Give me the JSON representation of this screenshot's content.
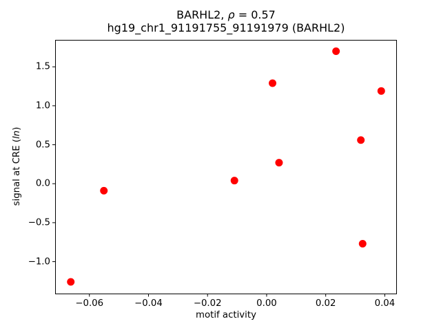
{
  "chart_data": {
    "type": "scatter",
    "title": "BARHL2, ρ = 0.57",
    "subtitle": "hg19_chr1_91191755_91191979 (BARHL2)",
    "title_parts": {
      "prefix": "BARHL2, ",
      "rho": "ρ",
      "suffix": " = 0.57"
    },
    "rho_value": 0.57,
    "xlabel": "motif activity",
    "ylabel": "signal at CRE (ln)",
    "ylabel_parts": {
      "prefix": "signal at CRE (",
      "italic": "ln",
      "suffix": ")"
    },
    "marker_color": "#ff0000",
    "marker_radius_px": 5.5,
    "grid": false,
    "legend": null,
    "xlim": [
      -0.0716,
      0.0441
    ],
    "ylim": [
      -1.414,
      1.85
    ],
    "x_ticks": [
      {
        "value": -0.06,
        "label": "−0.06"
      },
      {
        "value": -0.04,
        "label": "−0.04"
      },
      {
        "value": -0.02,
        "label": "−0.02"
      },
      {
        "value": 0.0,
        "label": "0.00"
      },
      {
        "value": 0.02,
        "label": "0.02"
      },
      {
        "value": 0.04,
        "label": "0.04"
      }
    ],
    "y_ticks": [
      {
        "value": -1.0,
        "label": "−1.0"
      },
      {
        "value": -0.5,
        "label": "−0.5"
      },
      {
        "value": 0.0,
        "label": "0.0"
      },
      {
        "value": 0.5,
        "label": "0.5"
      },
      {
        "value": 1.0,
        "label": "1.0"
      },
      {
        "value": 1.5,
        "label": "1.5"
      }
    ],
    "points": [
      {
        "x": -0.0663,
        "y": -1.26
      },
      {
        "x": -0.0551,
        "y": -0.09
      },
      {
        "x": -0.0109,
        "y": 0.04
      },
      {
        "x": 0.002,
        "y": 1.29
      },
      {
        "x": 0.0042,
        "y": 0.27
      },
      {
        "x": 0.0235,
        "y": 1.7
      },
      {
        "x": 0.0319,
        "y": 0.56
      },
      {
        "x": 0.0325,
        "y": -0.77
      },
      {
        "x": 0.0388,
        "y": 1.19
      }
    ]
  }
}
